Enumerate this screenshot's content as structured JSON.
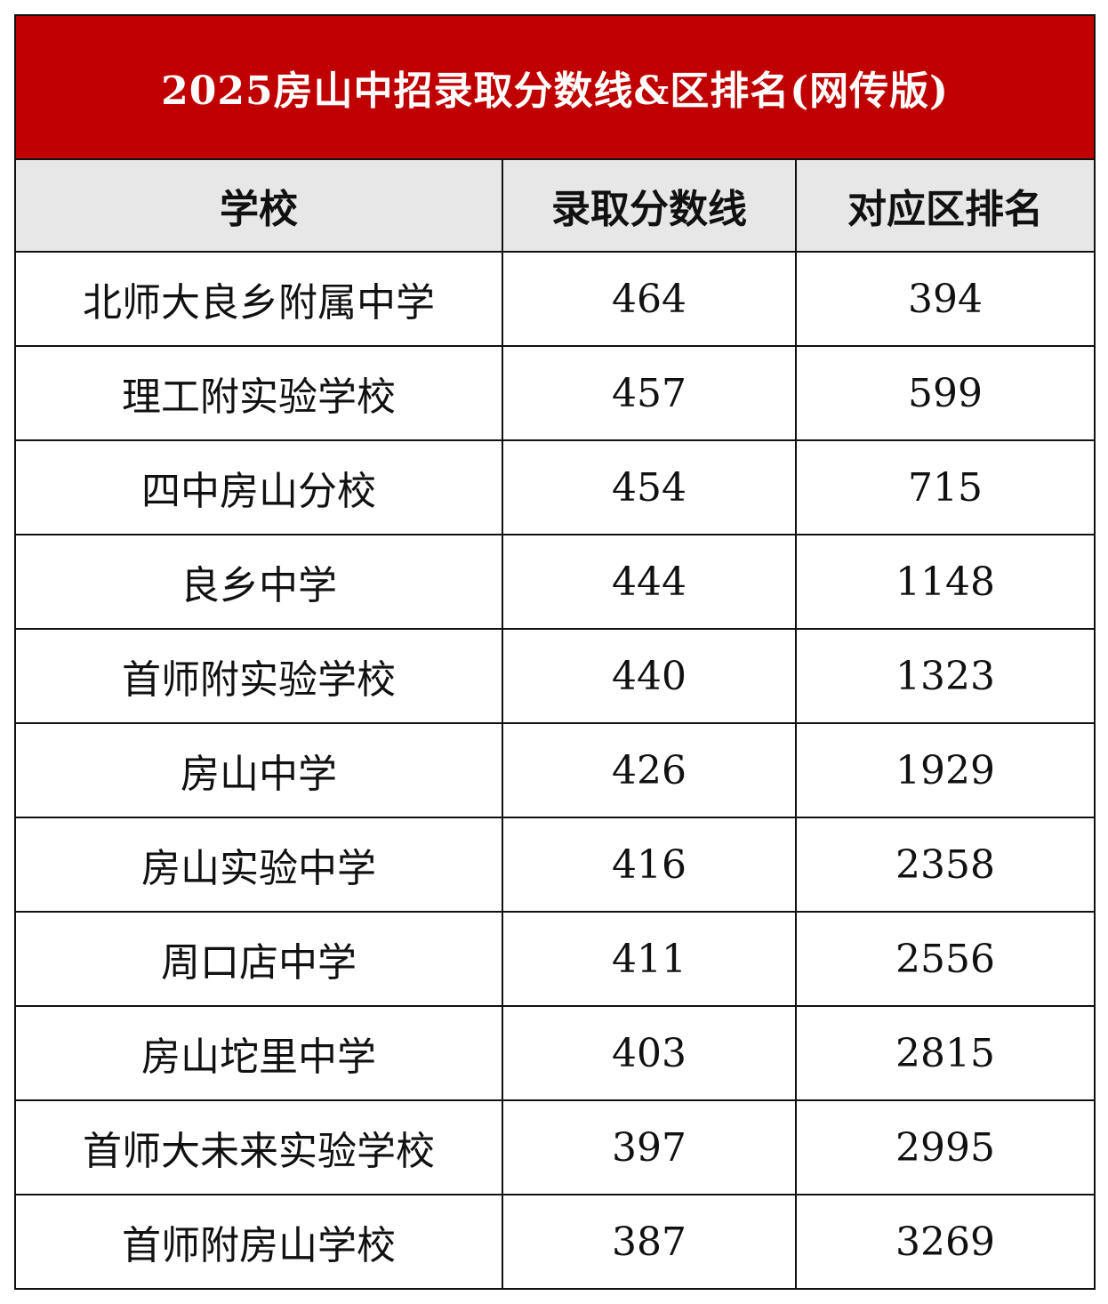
{
  "title": "2025房山中招录取分数线&区排名(网传版)",
  "columns": [
    "学校",
    "录取分数线",
    "对应区排名"
  ],
  "colors": {
    "title_bg": "#c00000",
    "header_bg": "#e7e7e7"
  },
  "rows": [
    {
      "school": "北师大良乡附属中学",
      "score": "464",
      "rank": "394"
    },
    {
      "school": "理工附实验学校",
      "score": "457",
      "rank": "599"
    },
    {
      "school": "四中房山分校",
      "score": "454",
      "rank": "715"
    },
    {
      "school": "良乡中学",
      "score": "444",
      "rank": "1148"
    },
    {
      "school": "首师附实验学校",
      "score": "440",
      "rank": "1323"
    },
    {
      "school": "房山中学",
      "score": "426",
      "rank": "1929"
    },
    {
      "school": "房山实验中学",
      "score": "416",
      "rank": "2358"
    },
    {
      "school": "周口店中学",
      "score": "411",
      "rank": "2556"
    },
    {
      "school": "房山坨里中学",
      "score": "403",
      "rank": "2815"
    },
    {
      "school": "首师大未来实验学校",
      "score": "397",
      "rank": "2995"
    },
    {
      "school": "首师附房山学校",
      "score": "387",
      "rank": "3269"
    }
  ]
}
